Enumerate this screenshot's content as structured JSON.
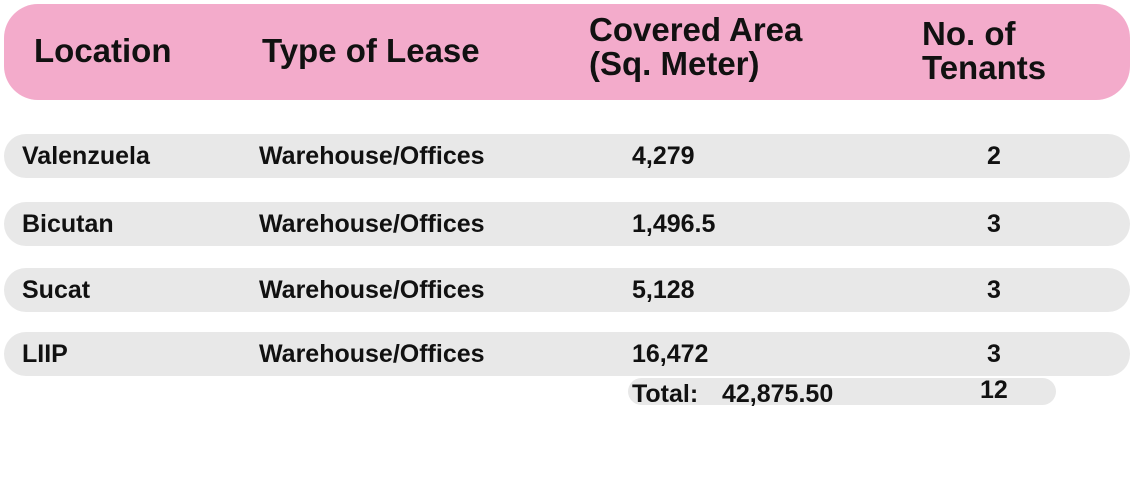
{
  "header": {
    "location": "Location",
    "type_of_lease": "Type of Lease",
    "covered_area_line1": "Covered Area",
    "covered_area_line2": "(Sq. Meter)",
    "tenants_line1": "No. of",
    "tenants_line2": "Tenants"
  },
  "rows": [
    {
      "location": "Valenzuela",
      "type": "Warehouse/Offices",
      "area": "4,279",
      "tenants": "2"
    },
    {
      "location": "Bicutan",
      "type": "Warehouse/Offices",
      "area": "1,496.5",
      "tenants": "3"
    },
    {
      "location": "Sucat",
      "type": "Warehouse/Offices",
      "area": "5,128",
      "tenants": "3"
    },
    {
      "location": "LIIP",
      "type": "Warehouse/Offices",
      "area": "16,472",
      "tenants": "3"
    }
  ],
  "total": {
    "label": "Total:",
    "area": "42,875.50",
    "tenants": "12"
  },
  "colors": {
    "header_bg": "#f3abcb",
    "row_bg": "#e8e8e8"
  }
}
